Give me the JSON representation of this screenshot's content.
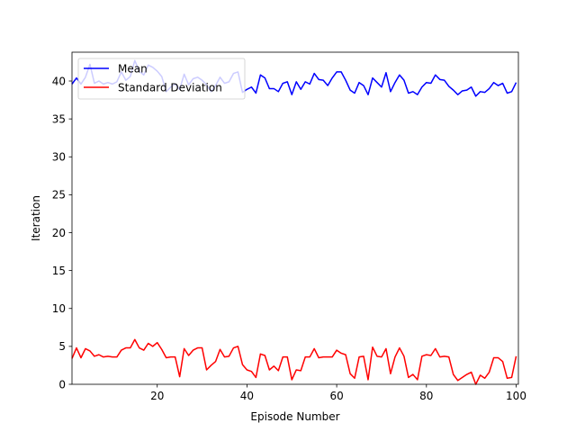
{
  "chart_data": {
    "type": "line",
    "title": "",
    "xlabel": "Episode Number",
    "ylabel": "Iteration",
    "xlim": [
      1,
      100.5
    ],
    "ylim": [
      0,
      43.8
    ],
    "xticks": [
      20,
      40,
      60,
      80,
      100
    ],
    "yticks": [
      0,
      5,
      10,
      15,
      20,
      25,
      30,
      35,
      40
    ],
    "grid": false,
    "legend_placement": "upper-left",
    "x": [
      1,
      2,
      3,
      4,
      5,
      6,
      7,
      8,
      9,
      10,
      11,
      12,
      13,
      14,
      15,
      16,
      17,
      18,
      19,
      20,
      21,
      22,
      23,
      24,
      25,
      26,
      27,
      28,
      29,
      30,
      31,
      32,
      33,
      34,
      35,
      36,
      37,
      38,
      39,
      40,
      41,
      42,
      43,
      44,
      45,
      46,
      47,
      48,
      49,
      50,
      51,
      52,
      53,
      54,
      55,
      56,
      57,
      58,
      59,
      60,
      61,
      62,
      63,
      64,
      65,
      66,
      67,
      68,
      69,
      70,
      71,
      72,
      73,
      74,
      75,
      76,
      77,
      78,
      79,
      80,
      81,
      82,
      83,
      84,
      85,
      86,
      87,
      88,
      89,
      90,
      91,
      92,
      93,
      94,
      95,
      96,
      97,
      98,
      99,
      100
    ],
    "series": [
      {
        "name": "Mean",
        "color": "#0000ff",
        "values": [
          39.6,
          40.4,
          39.6,
          40.5,
          42.2,
          39.7,
          40.0,
          39.6,
          39.8,
          39.6,
          39.9,
          41.2,
          40.1,
          40.6,
          42.7,
          41.3,
          40.8,
          42.1,
          41.8,
          41.3,
          40.6,
          38.6,
          39.2,
          39.6,
          38.9,
          40.9,
          39.5,
          40.3,
          40.5,
          40.1,
          39.5,
          38.6,
          39.4,
          40.5,
          39.7,
          39.9,
          41.0,
          41.2,
          38.5,
          38.9,
          39.2,
          38.4,
          40.8,
          40.4,
          39.0,
          39.0,
          38.6,
          39.7,
          39.9,
          38.2,
          39.9,
          38.9,
          39.9,
          39.6,
          41.0,
          40.2,
          40.1,
          39.4,
          40.4,
          41.2,
          41.2,
          40.1,
          38.8,
          38.4,
          39.8,
          39.4,
          38.2,
          40.4,
          39.8,
          39.2,
          41.1,
          38.6,
          39.8,
          40.8,
          40.1,
          38.4,
          38.6,
          38.2,
          39.2,
          39.8,
          39.7,
          40.8,
          40.2,
          40.1,
          39.3,
          38.8,
          38.2,
          38.7,
          38.8,
          39.2,
          38.0,
          38.6,
          38.5,
          39.0,
          39.8,
          39.4,
          39.7,
          38.4,
          38.6,
          39.8
        ]
      },
      {
        "name": "Standard Deviation",
        "color": "#ff0000",
        "values": [
          3.4,
          4.8,
          3.5,
          4.7,
          4.4,
          3.7,
          3.9,
          3.6,
          3.7,
          3.6,
          3.6,
          4.5,
          4.8,
          4.8,
          5.9,
          4.8,
          4.5,
          5.4,
          5.0,
          5.5,
          4.6,
          3.5,
          3.6,
          3.6,
          1.0,
          4.7,
          3.8,
          4.5,
          4.8,
          4.8,
          1.9,
          2.5,
          3.0,
          4.6,
          3.6,
          3.7,
          4.8,
          5.0,
          2.6,
          1.9,
          1.7,
          0.9,
          4.0,
          3.8,
          1.9,
          2.4,
          1.8,
          3.6,
          3.6,
          0.6,
          1.9,
          1.8,
          3.6,
          3.6,
          4.7,
          3.5,
          3.6,
          3.6,
          3.6,
          4.5,
          4.1,
          3.9,
          1.4,
          0.8,
          3.6,
          3.7,
          0.6,
          4.9,
          3.7,
          3.6,
          4.7,
          1.4,
          3.6,
          4.8,
          3.7,
          0.9,
          1.3,
          0.6,
          3.7,
          3.9,
          3.8,
          4.7,
          3.6,
          3.7,
          3.6,
          1.3,
          0.5,
          0.9,
          1.3,
          1.6,
          0.0,
          1.2,
          0.8,
          1.6,
          3.5,
          3.5,
          3.0,
          0.8,
          0.9,
          3.7
        ]
      }
    ]
  }
}
